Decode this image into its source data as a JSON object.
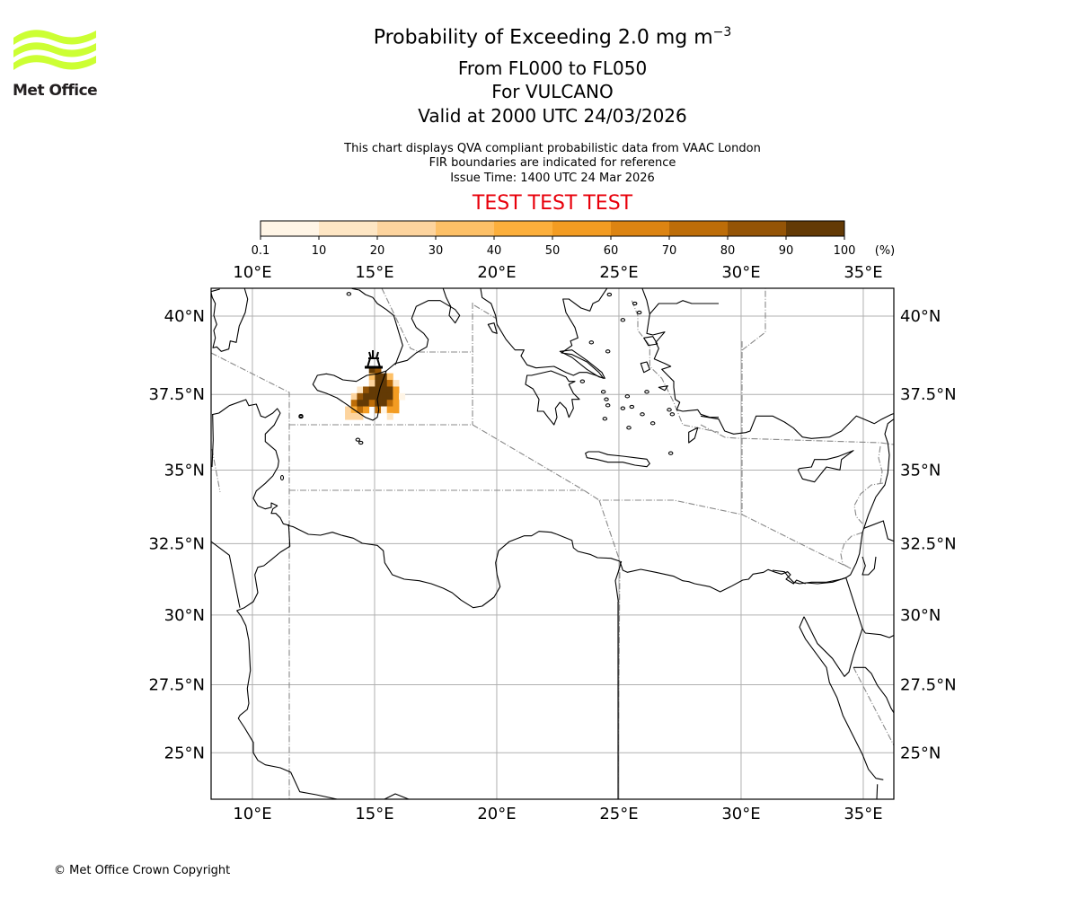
{
  "header": {
    "title": "Probability of Exceeding 2.0 mg m",
    "title_superscript": "−3",
    "level_range": "From FL000 to FL050",
    "volcano": "For VULCANO",
    "valid_time": "Valid at 2000 UTC 24/03/2026",
    "note_1": "This chart displays QVA compliant probabilistic data from VAAC London",
    "note_2": "FIR boundaries are indicated for reference",
    "issue_time": "Issue Time: 1400 UTC 24 Mar 2026",
    "test_banner": "TEST TEST TEST",
    "test_color": "#e8000b"
  },
  "logo": {
    "text": "Met Office",
    "color": "#ccff33"
  },
  "footer": {
    "copyright": "© Met Office Crown Copyright"
  },
  "chart_data": {
    "type": "heatmap",
    "title": "Probability of Exceeding 2.0 mg m−3",
    "colorbar": {
      "unit": "(%)",
      "bounds": [
        "0.1",
        "10",
        "20",
        "30",
        "40",
        "50",
        "60",
        "70",
        "80",
        "90",
        "100"
      ],
      "colors": [
        "#fff5e6",
        "#fee6c4",
        "#fdd49e",
        "#fdc067",
        "#fcaf3c",
        "#f39c22",
        "#dc8412",
        "#bd6d08",
        "#945406",
        "#633a05"
      ]
    },
    "lon_range": [
      8.3,
      36.2
    ],
    "lat_range": [
      23.3,
      40.9
    ],
    "lon_ticks": [
      "10°E",
      "15°E",
      "20°E",
      "25°E",
      "30°E",
      "35°E"
    ],
    "lon_tick_values": [
      10,
      15,
      20,
      25,
      30,
      35
    ],
    "lat_ticks": [
      "25°N",
      "27.5°N",
      "30°N",
      "32.5°N",
      "35°N",
      "37.5°N",
      "40°N"
    ],
    "lat_tick_values": [
      25,
      27.5,
      30,
      32.5,
      35,
      37.5,
      40
    ],
    "volcano_location": {
      "name": "VULCANO",
      "lon": 14.96,
      "lat": 38.4
    },
    "grid": {
      "lon_start": 13.79,
      "lon_step": 0.245,
      "lat_start": 38.4,
      "lat_step": 0.215,
      "values": [
        [
          0,
          0,
          0,
          0,
          95,
          85,
          0,
          0,
          0,
          0
        ],
        [
          0,
          0,
          0,
          0,
          35,
          95,
          95,
          30,
          0,
          0
        ],
        [
          0,
          0,
          0,
          0,
          25,
          95,
          95,
          75,
          15,
          0
        ],
        [
          0,
          0,
          15,
          80,
          95,
          95,
          95,
          95,
          50,
          0
        ],
        [
          0,
          20,
          85,
          95,
          95,
          95,
          95,
          95,
          55,
          5
        ],
        [
          0,
          75,
          95,
          95,
          75,
          95,
          95,
          75,
          55,
          0
        ],
        [
          25,
          45,
          75,
          55,
          0,
          75,
          5,
          55,
          50,
          0
        ],
        [
          25,
          20,
          20,
          0,
          0,
          0,
          0,
          10,
          0,
          0
        ]
      ]
    }
  }
}
